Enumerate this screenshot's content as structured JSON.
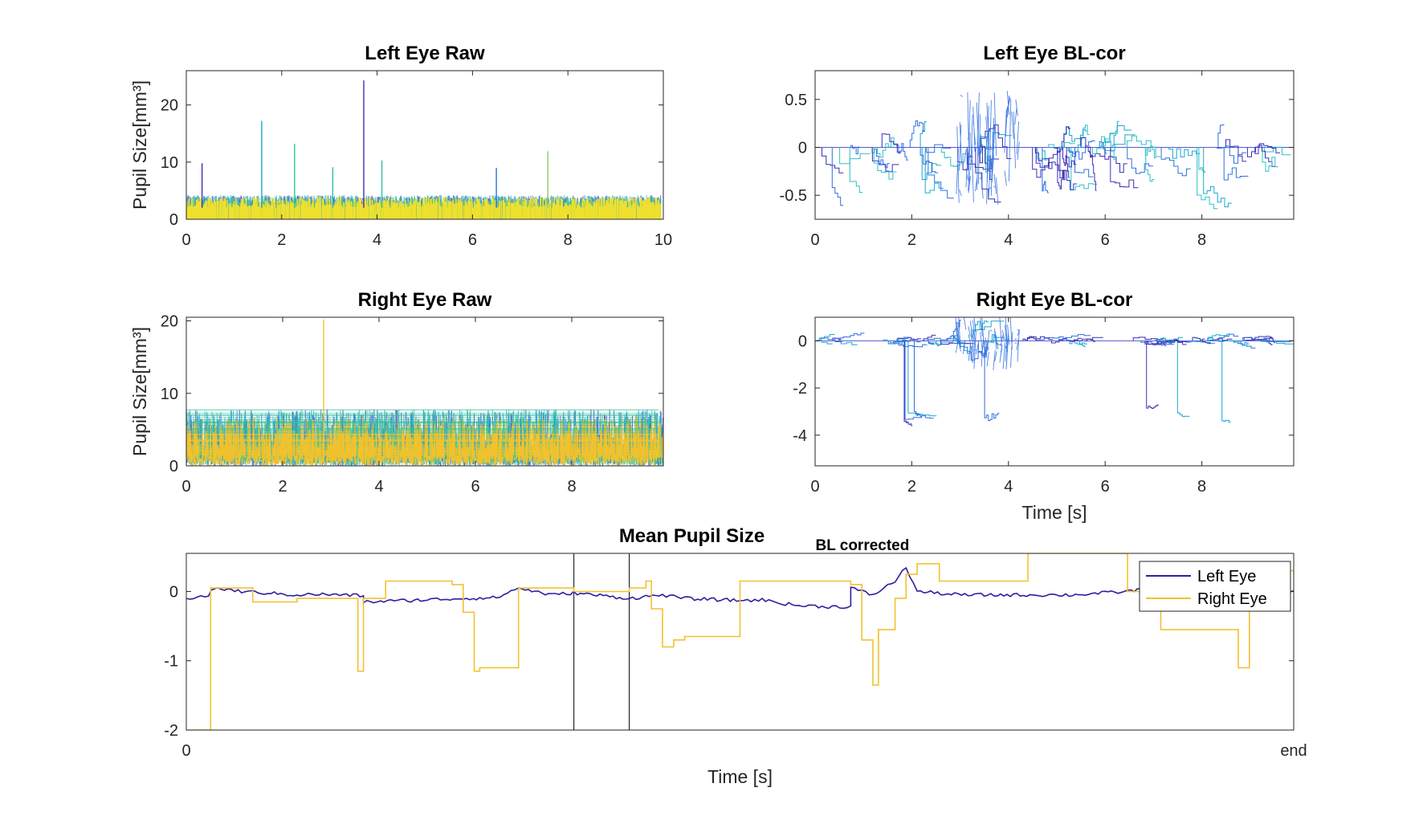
{
  "chart_data": [
    {
      "id": "left_raw",
      "type": "line",
      "title": "Left Eye Raw",
      "xlabel": "",
      "ylabel": "Pupil Size[mm³]",
      "xlim": [
        0,
        10
      ],
      "ylim": [
        0,
        26
      ],
      "xticks": [
        0,
        2,
        4,
        6,
        8,
        10
      ],
      "xtick_labels": [
        "0",
        "2",
        "4",
        "6",
        "8",
        "10"
      ],
      "yticks": [
        0,
        10,
        20
      ],
      "ytick_labels": [
        "0",
        "10",
        "20"
      ],
      "colormap": [
        "#3a2fb8",
        "#2f6fe0",
        "#1aa8d0",
        "#2fc0a0",
        "#8fd060",
        "#f5e22a"
      ],
      "baseline_band": [
        2.0,
        4.2
      ],
      "spikes": [
        {
          "x": 0.33,
          "y": 9.8,
          "color": "#3a2fb8"
        },
        {
          "x": 1.58,
          "y": 17.2,
          "color": "#1aa8d0"
        },
        {
          "x": 2.27,
          "y": 13.2,
          "color": "#2fc0a0"
        },
        {
          "x": 3.07,
          "y": 9.1,
          "color": "#2fc0a0"
        },
        {
          "x": 3.72,
          "y": 24.3,
          "color": "#3a2fb8"
        },
        {
          "x": 4.1,
          "y": 10.3,
          "color": "#2fc0a0"
        },
        {
          "x": 6.5,
          "y": 9.0,
          "color": "#2f6fe0"
        },
        {
          "x": 7.58,
          "y": 11.9,
          "color": "#8fd060"
        }
      ]
    },
    {
      "id": "left_bl",
      "type": "line",
      "title": "Left Eye BL-cor",
      "xlabel": "",
      "ylabel": "",
      "xlim": [
        0,
        9.9
      ],
      "ylim": [
        -0.75,
        0.8
      ],
      "xticks": [
        0,
        2,
        4,
        6,
        8
      ],
      "xtick_labels": [
        "0",
        "2",
        "4",
        "6",
        "8"
      ],
      "yticks": [
        0.5,
        0,
        -0.5
      ],
      "ytick_labels": [
        "0.5",
        "0",
        "-0.5"
      ],
      "colors": [
        "#3a2fb8",
        "#2f6fe0",
        "#1aa8d0",
        "#2fc0c8"
      ]
    },
    {
      "id": "right_raw",
      "type": "line",
      "title": "Right Eye Raw",
      "xlabel": "",
      "ylabel": "Pupil Size[mm³]",
      "xlim": [
        0,
        9.9
      ],
      "ylim": [
        0,
        20.5
      ],
      "xticks": [
        0,
        2,
        4,
        6,
        8
      ],
      "xtick_labels": [
        "0",
        "2",
        "4",
        "6",
        "8"
      ],
      "yticks": [
        0,
        10,
        20
      ],
      "ytick_labels": [
        "0",
        "10",
        "20"
      ],
      "colormap": [
        "#3a2fb8",
        "#2f6fe0",
        "#1aa8d0",
        "#2fc0a0",
        "#8fd060",
        "#f5c22a"
      ],
      "baseline_band": [
        0.5,
        7.8
      ],
      "spikes": [
        {
          "x": 2.85,
          "y": 20.2,
          "color": "#f5c22a"
        }
      ]
    },
    {
      "id": "right_bl",
      "type": "line",
      "title": "Right Eye BL-cor",
      "xlabel": "Time [s]",
      "ylabel": "",
      "xlim": [
        0,
        9.9
      ],
      "ylim": [
        -5.3,
        1.0
      ],
      "xticks": [
        0,
        2,
        4,
        6,
        8
      ],
      "xtick_labels": [
        "0",
        "2",
        "4",
        "6",
        "8"
      ],
      "yticks": [
        0,
        -2,
        -4
      ],
      "ytick_labels": [
        "0",
        "-2",
        "-4"
      ],
      "colors": [
        "#3a2fb8",
        "#2f6fe0",
        "#1aa8d0"
      ]
    },
    {
      "id": "mean",
      "type": "line",
      "title": "Mean Pupil Size",
      "title_subscript": "BL corrected",
      "xlabel": "Time [s]",
      "ylabel": "",
      "xlim": [
        0,
        1
      ],
      "ylim": [
        -2,
        0.55
      ],
      "xticks": [
        0,
        1
      ],
      "xtick_labels": [
        "0",
        "end"
      ],
      "yticks": [
        0,
        -1,
        -2
      ],
      "ytick_labels": [
        "0",
        "-1",
        "-2"
      ],
      "vlines": [
        0.35,
        0.4
      ],
      "legend": {
        "position": "top-right",
        "entries": [
          "Left Eye",
          "Right Eye"
        ]
      },
      "series": [
        {
          "name": "Left Eye",
          "color": "#2c1fa0",
          "x": [
            0,
            0.02,
            0.025,
            0.05,
            0.1,
            0.12,
            0.16,
            0.16,
            0.2,
            0.25,
            0.28,
            0.3,
            0.33,
            0.35,
            0.4,
            0.43,
            0.45,
            0.5,
            0.52,
            0.55,
            0.58,
            0.6,
            0.6,
            0.62,
            0.64,
            0.65,
            0.66,
            0.7,
            0.75,
            0.8,
            0.85,
            0.9,
            0.92,
            0.95,
            0.97,
            1.0
          ],
          "y": [
            -0.1,
            -0.06,
            0.05,
            0.0,
            -0.05,
            -0.04,
            -0.06,
            -0.15,
            -0.13,
            -0.1,
            -0.09,
            0.05,
            -0.05,
            -0.02,
            -0.1,
            -0.05,
            -0.1,
            -0.13,
            -0.12,
            -0.2,
            -0.22,
            -0.22,
            0.05,
            -0.05,
            0.15,
            0.35,
            0.0,
            -0.05,
            -0.05,
            -0.05,
            0.0,
            0.15,
            0.1,
            -0.05,
            -0.05,
            0.0
          ]
        },
        {
          "name": "Right Eye",
          "color": "#f2c230",
          "x": [
            0,
            0.02,
            0.022,
            0.05,
            0.06,
            0.1,
            0.15,
            0.155,
            0.16,
            0.18,
            0.19,
            0.24,
            0.25,
            0.26,
            0.265,
            0.3,
            0.3,
            0.35,
            0.4,
            0.415,
            0.42,
            0.43,
            0.44,
            0.45,
            0.46,
            0.5,
            0.5,
            0.52,
            0.55,
            0.6,
            0.61,
            0.62,
            0.625,
            0.63,
            0.64,
            0.65,
            0.66,
            0.67,
            0.68,
            0.72,
            0.76,
            0.76,
            0.8,
            0.85,
            0.88,
            0.95,
            0.96,
            1.0
          ],
          "y": [
            -2.0,
            -2.0,
            0.05,
            0.05,
            -0.15,
            -0.1,
            -0.1,
            -1.15,
            -0.1,
            0.15,
            0.15,
            0.1,
            -0.3,
            -1.15,
            -1.1,
            -0.4,
            0.05,
            0.0,
            0.05,
            0.15,
            -0.25,
            -0.8,
            -0.7,
            -0.65,
            -0.65,
            -0.3,
            0.15,
            0.15,
            0.15,
            0.1,
            -0.7,
            -1.35,
            -0.55,
            -0.55,
            -0.1,
            0.25,
            0.4,
            0.4,
            0.15,
            0.15,
            0.15,
            0.55,
            0.55,
            0.0,
            -0.55,
            -1.1,
            0.3,
            0.3
          ]
        }
      ]
    }
  ]
}
